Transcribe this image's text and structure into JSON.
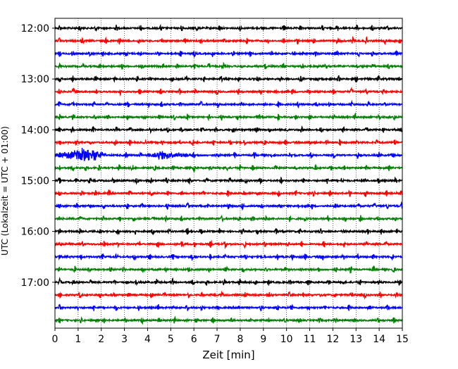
{
  "chart_data": {
    "type": "line",
    "xlabel": "Zeit  [min]",
    "ylabel": "UTC (Lokalzeit = UTC + 01:00)",
    "xlim": [
      0,
      15
    ],
    "x_ticks": [
      "0",
      "1",
      "2",
      "3",
      "4",
      "5",
      "6",
      "7",
      "8",
      "9",
      "10",
      "11",
      "12",
      "13",
      "14",
      "15"
    ],
    "y_ticks": [
      "12:00",
      "13:00",
      "14:00",
      "15:00",
      "16:00",
      "17:00"
    ],
    "grid": "vertical-dotted",
    "trace_interval_minutes": 15,
    "trace_colors": [
      "#000000",
      "#ff0000",
      "#0000ff",
      "#008000"
    ],
    "traces": [
      {
        "start": "12:00",
        "color": "#000000"
      },
      {
        "start": "12:15",
        "color": "#ff0000"
      },
      {
        "start": "12:30",
        "color": "#0000ff"
      },
      {
        "start": "12:45",
        "color": "#008000"
      },
      {
        "start": "13:00",
        "color": "#000000"
      },
      {
        "start": "13:15",
        "color": "#ff0000"
      },
      {
        "start": "13:30",
        "color": "#0000ff"
      },
      {
        "start": "13:45",
        "color": "#008000"
      },
      {
        "start": "14:00",
        "color": "#000000"
      },
      {
        "start": "14:15",
        "color": "#ff0000"
      },
      {
        "start": "14:30",
        "color": "#0000ff",
        "events": [
          {
            "start_min": 0,
            "end_min": 2.2,
            "peak_min": 1.4,
            "amplitude": 13
          },
          {
            "start_min": 3.9,
            "end_min": 6.0,
            "peak_min": 4.5,
            "amplitude": 8
          }
        ]
      },
      {
        "start": "14:45",
        "color": "#008000"
      },
      {
        "start": "15:00",
        "color": "#000000"
      },
      {
        "start": "15:15",
        "color": "#ff0000"
      },
      {
        "start": "15:30",
        "color": "#0000ff"
      },
      {
        "start": "15:45",
        "color": "#008000"
      },
      {
        "start": "16:00",
        "color": "#000000"
      },
      {
        "start": "16:15",
        "color": "#ff0000"
      },
      {
        "start": "16:30",
        "color": "#0000ff"
      },
      {
        "start": "16:45",
        "color": "#008000"
      },
      {
        "start": "17:00",
        "color": "#000000"
      },
      {
        "start": "17:15",
        "color": "#ff0000"
      },
      {
        "start": "17:30",
        "color": "#0000ff"
      },
      {
        "start": "17:45",
        "color": "#008000"
      }
    ]
  }
}
